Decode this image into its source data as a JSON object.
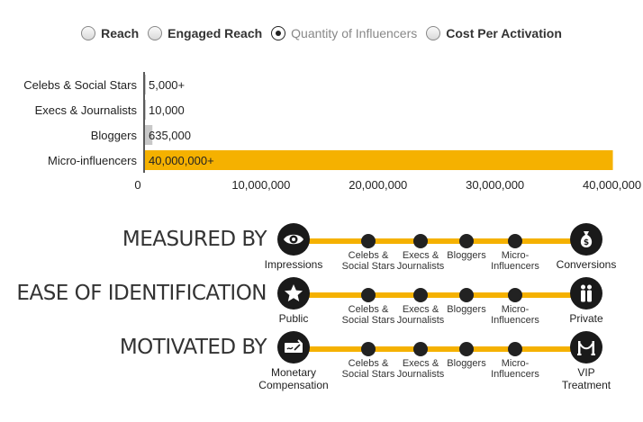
{
  "radios": [
    {
      "label": "Reach",
      "selected": false
    },
    {
      "label": "Engaged Reach",
      "selected": false
    },
    {
      "label": "Quantity of Influencers",
      "selected": true
    },
    {
      "label": "Cost Per Activation",
      "selected": false
    }
  ],
  "chart_data": {
    "type": "bar",
    "orientation": "horizontal",
    "categories": [
      "Celebs & Social Stars",
      "Execs & Journalists",
      "Bloggers",
      "Micro-influencers"
    ],
    "values": [
      5000,
      10000,
      635000,
      40000000
    ],
    "value_labels": [
      "5,000+",
      "10,000",
      "635,000",
      "40,000,000+"
    ],
    "bar_colors": [
      "#c8c8c8",
      "#c8c8c8",
      "#c8c8c8",
      "#f5b100"
    ],
    "xlim": [
      0,
      42500000
    ],
    "xticks": [
      0,
      10000000,
      20000000,
      30000000,
      40000000
    ],
    "xtick_labels": [
      "0",
      "10,000,000",
      "20,000,000",
      "30,000,000",
      "40,000,000"
    ],
    "grid": false
  },
  "timelines": [
    {
      "title": "MEASURED BY",
      "left_icon": "eye-icon",
      "left_label": "Impressions",
      "right_icon": "money-bag-icon",
      "right_label": "Conversions"
    },
    {
      "title": "EASE OF IDENTIFICATION",
      "left_icon": "star-icon",
      "left_label": "Public",
      "right_icon": "people-icon",
      "right_label": "Private"
    },
    {
      "title": "MOTIVATED BY",
      "left_icon": "check-icon",
      "left_label": "Monetary\nCompensation",
      "right_icon": "velvet-rope-icon",
      "right_label": "VIP Treatment"
    }
  ],
  "segments": [
    "Celebs &\nSocial Stars",
    "Execs &\nJournalists",
    "Bloggers",
    "Micro-\nInfluencers"
  ],
  "colors": {
    "accent": "#f5b100",
    "bar_gray": "#c8c8c8",
    "dark": "#1a1a1a"
  }
}
